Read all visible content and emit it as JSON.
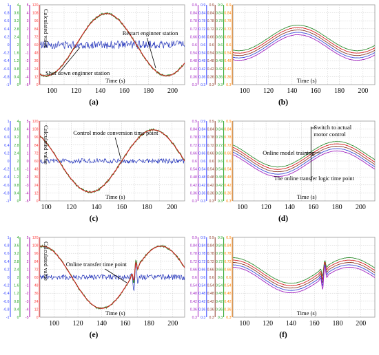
{
  "colors": {
    "sine_red": "#d41f1f",
    "sine_green": "#2e8b2e",
    "noise_blue": "#2233bb",
    "purple": "#a020c0",
    "blue_line": "#3b4bd6",
    "brown": "#8b3a2a",
    "green2": "#1f9a4a",
    "axis_colors": [
      "#3040ff",
      "#20a020",
      "#a000a0",
      "#ff4040"
    ],
    "axis_colors_right": [
      "#a020c0",
      "#3040ff",
      "#8b3a2a",
      "#20a020",
      "#ff8000"
    ]
  },
  "chart_data": [
    {
      "type": "line",
      "panel": "a",
      "caption": "(a)",
      "xlabel": "Time (s)",
      "ylabel": "Calculated value",
      "xticks": [
        "100",
        "120",
        "140",
        "160",
        "180",
        "200"
      ],
      "xlim": [
        90,
        210
      ],
      "left_axes": [
        [
          "1",
          "0.8",
          "0.6",
          "0.4",
          "0.2",
          "0",
          "-0.2",
          "-0.4",
          "-0.6",
          "-0.8",
          "-1"
        ],
        [
          "4",
          "3.6",
          "3.2",
          "2.8",
          "2.4",
          "2",
          "1.6",
          "1.2",
          "0.8",
          "0.4",
          "0"
        ],
        [
          "5",
          "4",
          "3",
          "2",
          "1",
          "0",
          "-1",
          "-2",
          "-3",
          "-4",
          "-5"
        ],
        [
          "120",
          "108",
          "96",
          "84",
          "72",
          "60",
          "48",
          "36",
          "24",
          "12",
          "0"
        ]
      ],
      "sine": {
        "period": 100,
        "peak_time": 145,
        "amplitude": 0.78
      },
      "noise_level": 0.1,
      "annotations": [
        "Restart enginner station",
        "Shut down enginner station"
      ]
    },
    {
      "type": "line",
      "panel": "b",
      "caption": "(b)",
      "xlabel": "Time (s)",
      "xticks": [
        "100",
        "120",
        "140",
        "160",
        "180",
        "200"
      ],
      "xlim": [
        90,
        210
      ],
      "right_axes": [
        [
          "0.9",
          "0.84",
          "0.78",
          "0.72",
          "0.66",
          "0.6",
          "0.54",
          "0.48",
          "0.42",
          "0.36",
          "0.3"
        ],
        [
          "0.9",
          "0.84",
          "0.78",
          "0.72",
          "0.66",
          "0.6",
          "0.54",
          "0.48",
          "0.42",
          "0.36",
          "0.3"
        ],
        [
          "0.9",
          "0.84",
          "0.78",
          "0.72",
          "0.66",
          "0.6",
          "0.54",
          "0.48",
          "0.42",
          "0.36",
          "0.3"
        ],
        [
          "0.9",
          "0.84",
          "0.78",
          "0.72",
          "0.66",
          "0.6",
          "0.54",
          "0.48",
          "0.42",
          "0.36",
          "0.3"
        ],
        [
          "0.9",
          "0.84",
          "0.78",
          "0.72",
          "0.66",
          "0.6",
          "0.54",
          "0.48",
          "0.42",
          "0.36",
          "0.3"
        ]
      ],
      "peak_time": 145,
      "annotations": []
    },
    {
      "type": "line",
      "panel": "c",
      "caption": "(c)",
      "xlabel": "Time (s)",
      "ylabel": "Calculated value",
      "xticks": [
        "100",
        "120",
        "140",
        "160",
        "180",
        "200"
      ],
      "xlim": [
        95,
        210
      ],
      "left_axes": [
        [
          "1",
          "0.8",
          "0.6",
          "0.4",
          "0.2",
          "0",
          "-0.2",
          "-0.4",
          "-0.6",
          "-0.8",
          "-1"
        ],
        [
          "4",
          "3.6",
          "3.2",
          "2.8",
          "2.4",
          "2",
          "1.6",
          "1.2",
          "0.8",
          "0.4",
          "0"
        ],
        [
          "5",
          "4",
          "3",
          "2",
          "1",
          "0",
          "-1",
          "-2",
          "-3",
          "-4",
          "-5"
        ],
        [
          "120",
          "108",
          "96",
          "84",
          "72",
          "60",
          "48",
          "36",
          "24",
          "12",
          "0"
        ]
      ],
      "sine": {
        "period": 100,
        "peak_time": 185,
        "amplitude": 0.78
      },
      "noise_level": 0.06,
      "annotations": [
        "Control mode conversion time point"
      ]
    },
    {
      "type": "line",
      "panel": "d",
      "caption": "(d)",
      "xlabel": "Time (s)",
      "xticks": [
        "100",
        "120",
        "140",
        "160",
        "180",
        "200"
      ],
      "xlim": [
        92,
        212
      ],
      "right_axes": [
        [
          "0.9",
          "0.84",
          "0.78",
          "0.72",
          "0.66",
          "0.6",
          "0.54",
          "0.48",
          "0.42",
          "0.36",
          "0.3"
        ],
        [
          "0.9",
          "0.84",
          "0.78",
          "0.72",
          "0.66",
          "0.6",
          "0.54",
          "0.48",
          "0.42",
          "0.36",
          "0.3"
        ],
        [
          "0.9",
          "0.84",
          "0.78",
          "0.72",
          "0.66",
          "0.6",
          "0.54",
          "0.48",
          "0.42",
          "0.36",
          "0.3"
        ],
        [
          "0.9",
          "0.84",
          "0.78",
          "0.72",
          "0.66",
          "0.6",
          "0.54",
          "0.48",
          "0.42",
          "0.36",
          "0.3"
        ],
        [
          "0.9",
          "0.84",
          "0.78",
          "0.72",
          "0.66",
          "0.6",
          "0.54",
          "0.48",
          "0.42",
          "0.36",
          "0.3"
        ]
      ],
      "peak_time": 180,
      "annotations": [
        "Switch to actual",
        "motor control",
        "Online model training",
        "The online transfer logic time point"
      ]
    },
    {
      "type": "line",
      "panel": "e",
      "caption": "(e)",
      "xlabel": "Time (s)",
      "ylabel": "Calculated value",
      "xticks": [
        "100",
        "120",
        "140",
        "160",
        "180",
        "200"
      ],
      "xlim": [
        88,
        210
      ],
      "left_axes": [
        [
          "1",
          "0.8",
          "0.6",
          "0.4",
          "0.2",
          "0",
          "-0.2",
          "-0.4",
          "-0.6",
          "-0.8",
          "-1"
        ],
        [
          "4",
          "3.6",
          "3.2",
          "2.8",
          "2.4",
          "2",
          "1.6",
          "1.2",
          "0.8",
          "0.4",
          "0"
        ],
        [
          "5",
          "4",
          "3",
          "2",
          "1",
          "0",
          "-1",
          "-2",
          "-3",
          "-4",
          "-5"
        ],
        [
          "120",
          "108",
          "96",
          "84",
          "72",
          "60",
          "48",
          "36",
          "24",
          "12",
          "0"
        ]
      ],
      "sine": {
        "period": 100,
        "peak_time": 190,
        "amplitude": 0.78
      },
      "noise_level": 0.07,
      "disturbance_time": 168,
      "annotations": [
        "Online transfer time point"
      ]
    },
    {
      "type": "line",
      "panel": "f",
      "caption": "(f)",
      "xlabel": "Time (s)",
      "xticks": [
        "100",
        "120",
        "140",
        "160",
        "180",
        "200"
      ],
      "xlim": [
        90,
        212
      ],
      "right_axes": [
        [
          "0.9",
          "0.84",
          "0.78",
          "0.72",
          "0.66",
          "0.6",
          "0.54",
          "0.48",
          "0.42",
          "0.36",
          "0.3"
        ],
        [
          "0.9",
          "0.84",
          "0.78",
          "0.72",
          "0.66",
          "0.6",
          "0.54",
          "0.48",
          "0.42",
          "0.36",
          "0.3"
        ],
        [
          "0.9",
          "0.84",
          "0.78",
          "0.72",
          "0.66",
          "0.6",
          "0.54",
          "0.48",
          "0.42",
          "0.36",
          "0.3"
        ],
        [
          "0.9",
          "0.84",
          "0.78",
          "0.72",
          "0.66",
          "0.6",
          "0.54",
          "0.48",
          "0.42",
          "0.36",
          "0.3"
        ],
        [
          "0.9",
          "0.84",
          "0.78",
          "0.72",
          "0.66",
          "0.6",
          "0.54",
          "0.48",
          "0.42",
          "0.36",
          "0.3"
        ]
      ],
      "peak_time": 190,
      "disturbance_time": 168,
      "annotations": []
    }
  ]
}
